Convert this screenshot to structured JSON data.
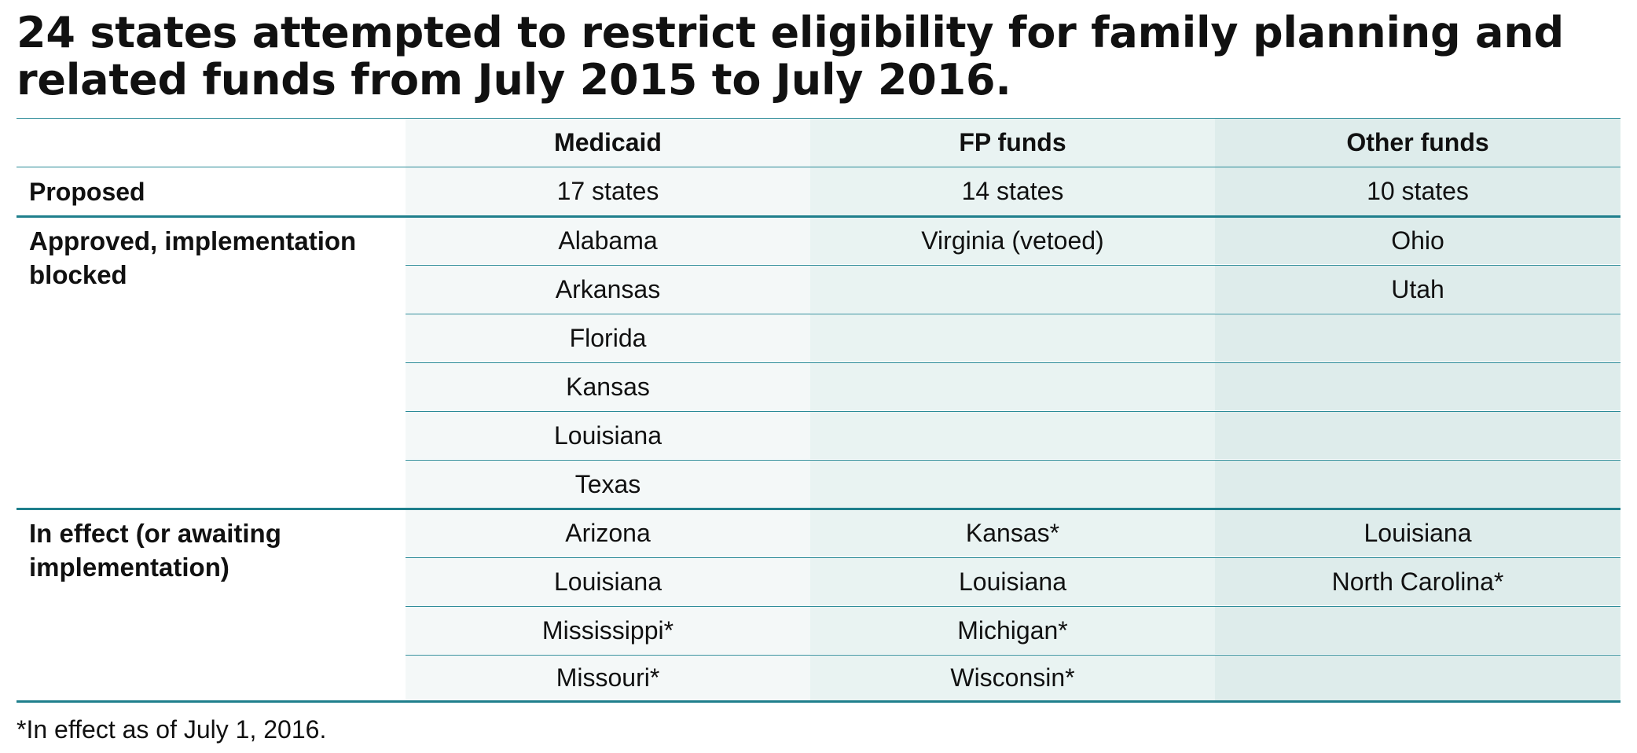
{
  "chart_data": {
    "type": "table",
    "title_lines": [
      "24 states attempted to restrict eligibility for family planning and",
      "related funds from July 2015 to July 2016."
    ],
    "columns": [
      "Medicaid",
      "FP funds",
      "Other funds"
    ],
    "proposed": {
      "label": "Proposed",
      "values": [
        "17 states",
        "14 states",
        "10 states"
      ]
    },
    "approved": {
      "label": "Approved, implementation blocked",
      "rows": [
        [
          "Alabama",
          "Virginia (vetoed)",
          "Ohio"
        ],
        [
          "Arkansas",
          "",
          "Utah"
        ],
        [
          "Florida",
          "",
          ""
        ],
        [
          "Kansas",
          "",
          ""
        ],
        [
          "Louisiana",
          "",
          ""
        ],
        [
          "Texas",
          "",
          ""
        ]
      ]
    },
    "in_effect": {
      "label": "In effect (or awaiting implementation)",
      "rows": [
        [
          "Arizona",
          "Kansas*",
          "Louisiana"
        ],
        [
          "Louisiana",
          "Louisiana",
          "North Carolina*"
        ],
        [
          "Mississippi*",
          "Michigan*",
          ""
        ],
        [
          "Missouri*",
          "Wisconsin*",
          ""
        ]
      ]
    },
    "footnote": "*In effect as of July 1, 2016."
  }
}
